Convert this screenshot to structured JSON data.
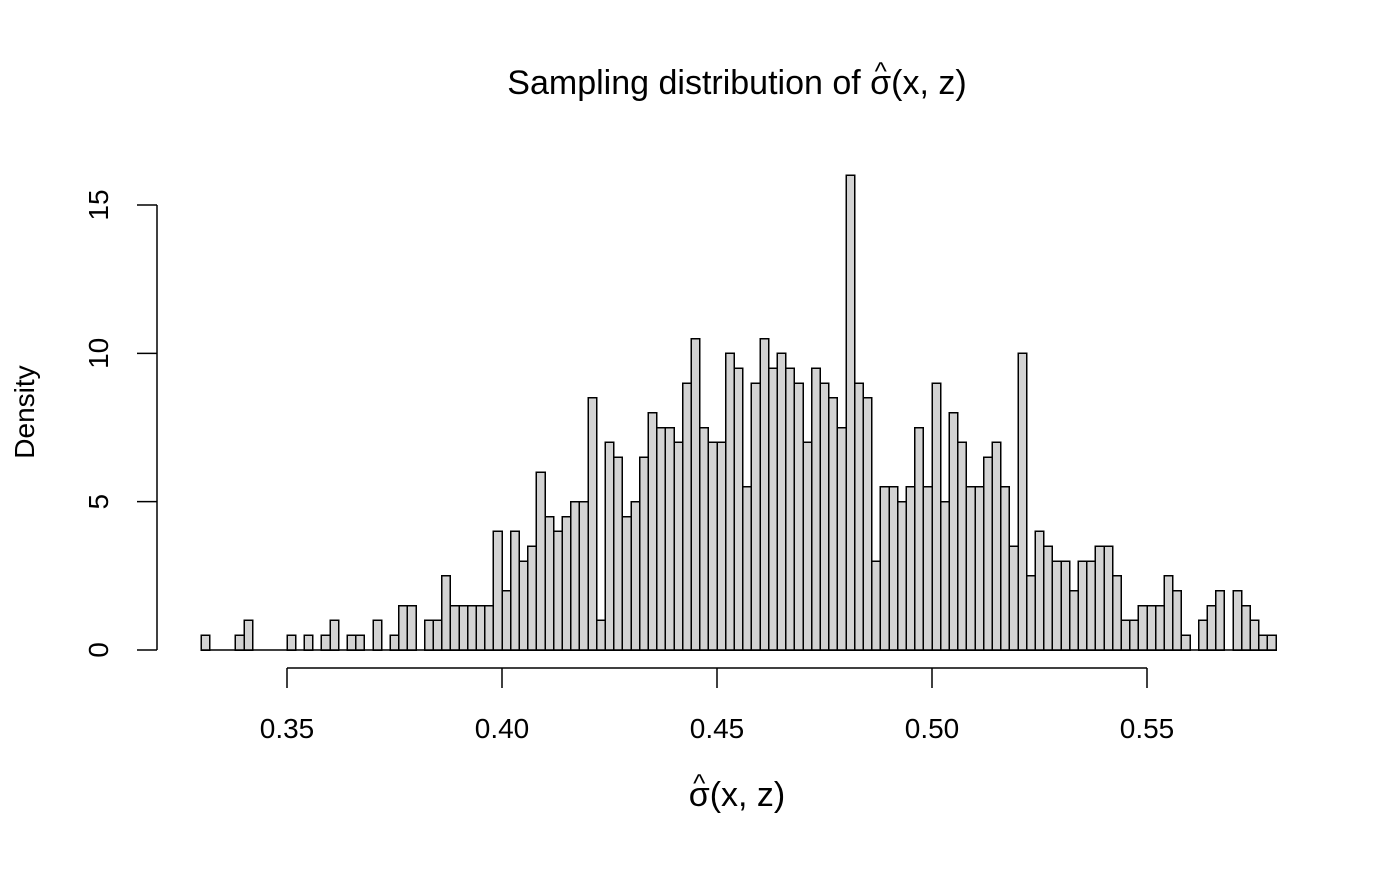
{
  "chart_data": {
    "type": "bar",
    "subtype": "histogram",
    "title": "Sampling distribution of σ̂(x, z)",
    "title_parts": {
      "prefix": "Sampling distribution of ",
      "symbol": "σ",
      "hat": "^",
      "suffix": "(x, z)"
    },
    "xlabel": "σ̂(x, z)",
    "xlabel_parts": {
      "symbol": "σ",
      "hat": "^",
      "suffix": "(x, z)"
    },
    "ylabel": "Density",
    "xlim": [
      0.33,
      0.58
    ],
    "ylim": [
      0,
      16
    ],
    "xticks": [
      0.35,
      0.4,
      0.45,
      0.5,
      0.55
    ],
    "xtick_labels": [
      "0.35",
      "0.40",
      "0.45",
      "0.50",
      "0.55"
    ],
    "yticks": [
      0,
      5,
      10,
      15
    ],
    "ytick_labels": [
      "0",
      "5",
      "10",
      "15"
    ],
    "bin_start": 0.33,
    "bin_width": 0.002,
    "values": [
      0.5,
      0,
      0,
      0,
      0.5,
      1,
      0,
      0,
      0,
      0,
      0.5,
      0,
      0.5,
      0,
      0.5,
      1,
      0,
      0.5,
      0.5,
      0,
      1,
      0,
      0.5,
      1.5,
      1.5,
      0,
      1,
      1,
      2.5,
      1.5,
      1.5,
      1.5,
      1.5,
      1.5,
      4,
      2,
      4,
      3,
      3.5,
      6,
      4.5,
      4,
      4.5,
      5,
      5,
      8.5,
      1,
      7,
      6.5,
      4.5,
      5,
      6.5,
      8,
      7.5,
      7.5,
      7,
      9,
      10.5,
      7.5,
      7,
      7,
      10,
      9.5,
      5.5,
      9,
      10.5,
      9.5,
      10,
      9.5,
      9,
      7,
      9.5,
      9,
      8.5,
      7.5,
      16,
      9,
      8.5,
      3,
      5.5,
      5.5,
      5,
      5.5,
      7.5,
      5.5,
      9,
      5,
      8,
      7,
      5.5,
      5.5,
      6.5,
      7,
      5.5,
      3.5,
      10,
      2.5,
      4,
      3.5,
      3,
      3,
      2,
      3,
      3,
      3.5,
      3.5,
      2.5,
      1,
      1,
      1.5,
      1.5,
      1.5,
      2.5,
      2,
      0.5,
      0,
      1,
      1.5,
      2,
      0,
      2,
      1.5,
      1,
      0.5,
      0.5
    ],
    "bar_fill": "#d3d3d3",
    "bar_stroke": "#000000",
    "grid": false,
    "legend": "none"
  }
}
